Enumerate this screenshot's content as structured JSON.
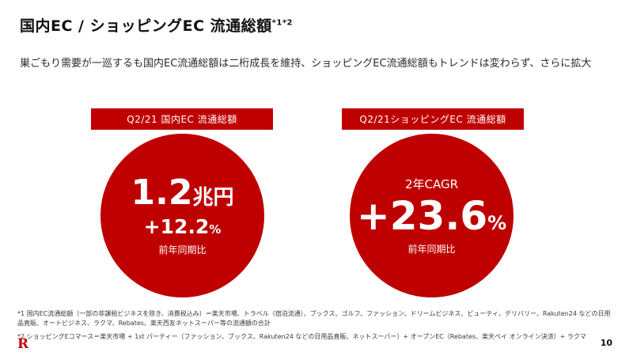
{
  "slide": {
    "title": "国内EC / ショッピングEC 流通総額",
    "title_superscript": "*1*2",
    "subtitle": "巣ごもり需要が一巡するも国内EC流通総額は二桁成長を維持、ショッピングEC流通総額もトレンドは変わらず、さらに拡大",
    "page_number": "10"
  },
  "colors": {
    "brand_red": "#BF0000",
    "background": "#FFFFFF"
  },
  "domestic_ec": {
    "label": "Q2/21 国内EC 流通総額",
    "value": "1.2",
    "value_unit": "兆円",
    "growth": "+12.2",
    "growth_unit": "%",
    "comparison": "前年同期比"
  },
  "shopping_ec": {
    "label": "Q2/21ショッピングEC 流通総額",
    "cagr_label": "2年CAGR",
    "growth": "+23.6",
    "growth_unit": "%",
    "comparison": "前年同期比"
  },
  "footnotes": [
    "*1 国内EC流通総額（一部の非課税ビジネスを除き、消費税込み）＝楽天市場、トラベル（宿泊流通）、ブックス、ゴルフ、ファッション、ドリームビジネス、ビューティ、デリバリー、Rakuten24 などの日用品直販、オートビジネス、ラクマ、Rebates、楽天西友ネットスーパー等の流通額の合計",
    "*2 ショッピングEコマース＝楽天市場 + 1st パーティー（ファッション、ブックス、Rakuten24 などの日用品直販、ネットスーパー）+ オープンEC（Rebates、楽天ペイ オンライン決済）+ ラクマ"
  ],
  "logo": {
    "letter": "R"
  }
}
